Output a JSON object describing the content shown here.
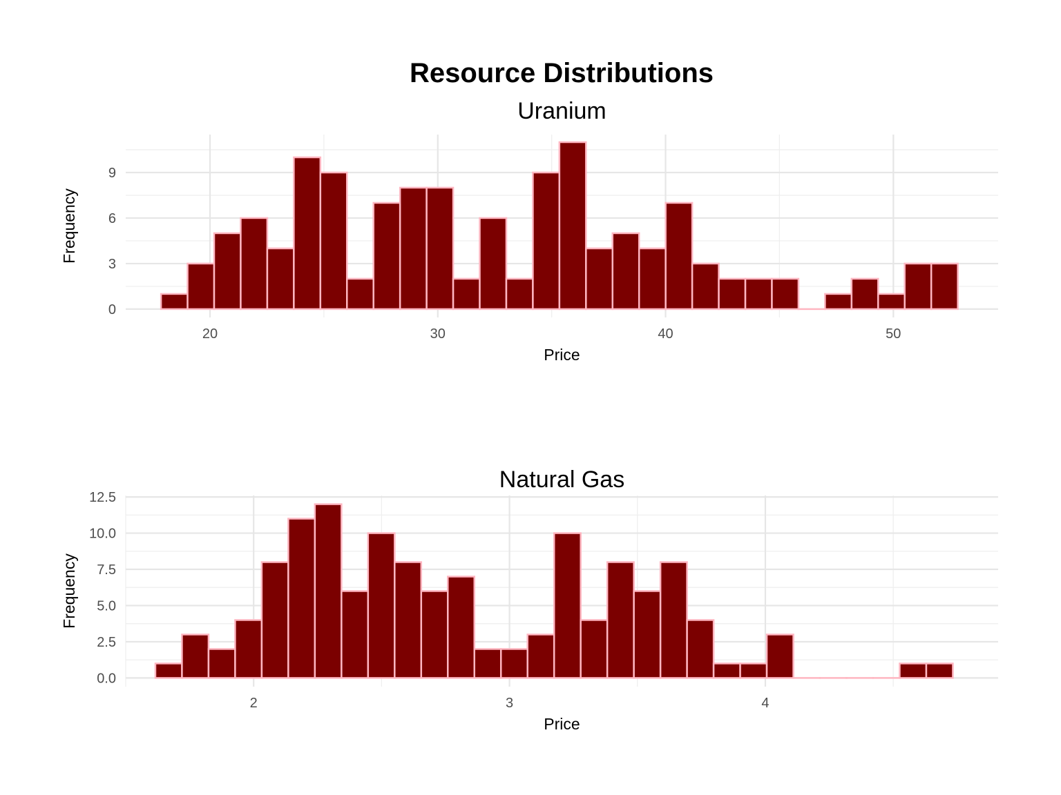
{
  "title": "Resource Distributions",
  "colors": {
    "bar_fill": "#7b0000",
    "bar_outline": "#ffb6c1"
  },
  "chart_data": [
    {
      "type": "bar",
      "subtitle": "Uranium",
      "xlabel": "Price",
      "ylabel": "Frequency",
      "xlim": [
        16.3,
        54.6
      ],
      "ylim": [
        -0.55,
        11.5
      ],
      "x_ticks": [
        20,
        30,
        40,
        50
      ],
      "x_tick_labels": [
        "20",
        "30",
        "40",
        "50"
      ],
      "y_ticks": [
        0,
        3,
        6,
        9
      ],
      "y_tick_labels": [
        "0",
        "3",
        "6",
        "9"
      ],
      "grid": true,
      "bin_start": 17.85,
      "bin_width": 1.166,
      "values": [
        1,
        3,
        5,
        6,
        4,
        10,
        9,
        2,
        7,
        8,
        8,
        2,
        6,
        2,
        9,
        11,
        4,
        5,
        4,
        7,
        3,
        2,
        2,
        2,
        0,
        1,
        2,
        1,
        3,
        3
      ]
    },
    {
      "type": "bar",
      "subtitle": "Natural Gas",
      "xlabel": "Price",
      "ylabel": "Frequency",
      "xlim": [
        1.5,
        4.91
      ],
      "ylim": [
        -0.6,
        12.6
      ],
      "x_ticks": [
        2,
        3,
        4
      ],
      "x_tick_labels": [
        "2",
        "3",
        "4"
      ],
      "y_ticks": [
        0,
        2.5,
        5,
        7.5,
        10,
        12.5
      ],
      "y_tick_labels": [
        "0.0",
        "2.5",
        "5.0",
        "7.5",
        "10.0",
        "12.5"
      ],
      "grid": true,
      "bin_start": 1.616,
      "bin_width": 0.1039,
      "values": [
        1,
        3,
        2,
        4,
        8,
        11,
        12,
        6,
        10,
        8,
        6,
        7,
        2,
        2,
        3,
        10,
        4,
        8,
        6,
        8,
        4,
        1,
        1,
        3,
        0,
        0,
        0,
        0,
        1,
        1
      ]
    }
  ]
}
